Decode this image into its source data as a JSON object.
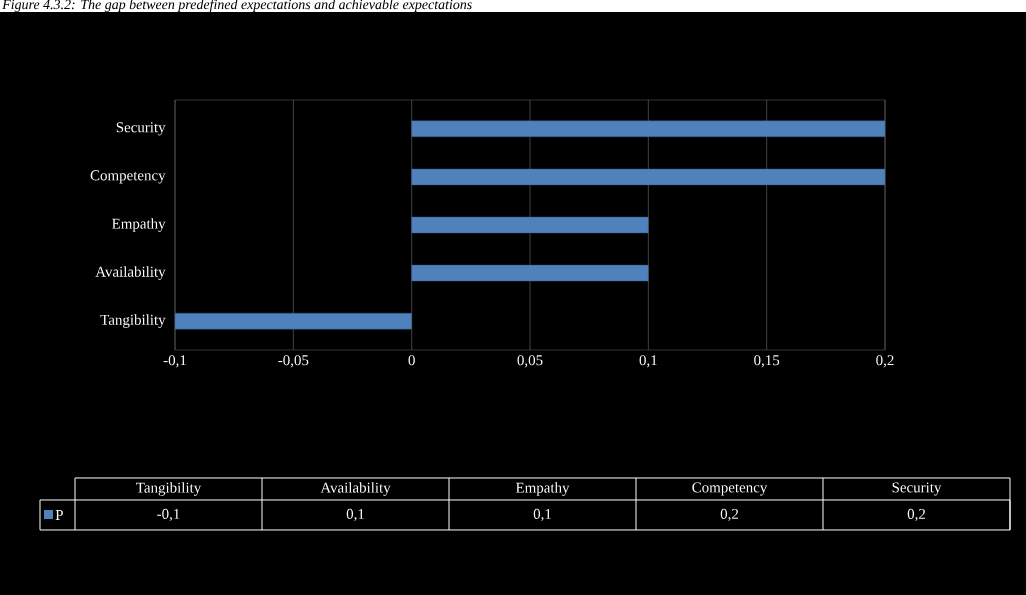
{
  "chart_data": {
    "type": "bar",
    "orientation": "horizontal",
    "title": "Figure 4.3.2: The gap between predefined expectations and achievable expectations",
    "categories": [
      "Security",
      "Competency",
      "Empathy",
      "Availability",
      "Tangibility"
    ],
    "series": [
      {
        "name": "P",
        "color": "#4f81bd",
        "values": [
          0.2,
          0.2,
          0.1,
          0.1,
          -0.1
        ]
      }
    ],
    "xlim": [
      -0.1,
      0.2
    ],
    "xticks": [
      {
        "value": -0.1,
        "label": "-0,1"
      },
      {
        "value": -0.05,
        "label": "-0,05"
      },
      {
        "value": 0,
        "label": "0"
      },
      {
        "value": 0.05,
        "label": "0,05"
      },
      {
        "value": 0.1,
        "label": "0,1"
      },
      {
        "value": 0.15,
        "label": "0,15"
      },
      {
        "value": 0.2,
        "label": "0,2"
      }
    ],
    "value_labels": [
      "0,2",
      "0,2",
      "0,1",
      "0,1",
      "-0,1"
    ],
    "grid": "x",
    "legend": "bottom"
  }
}
